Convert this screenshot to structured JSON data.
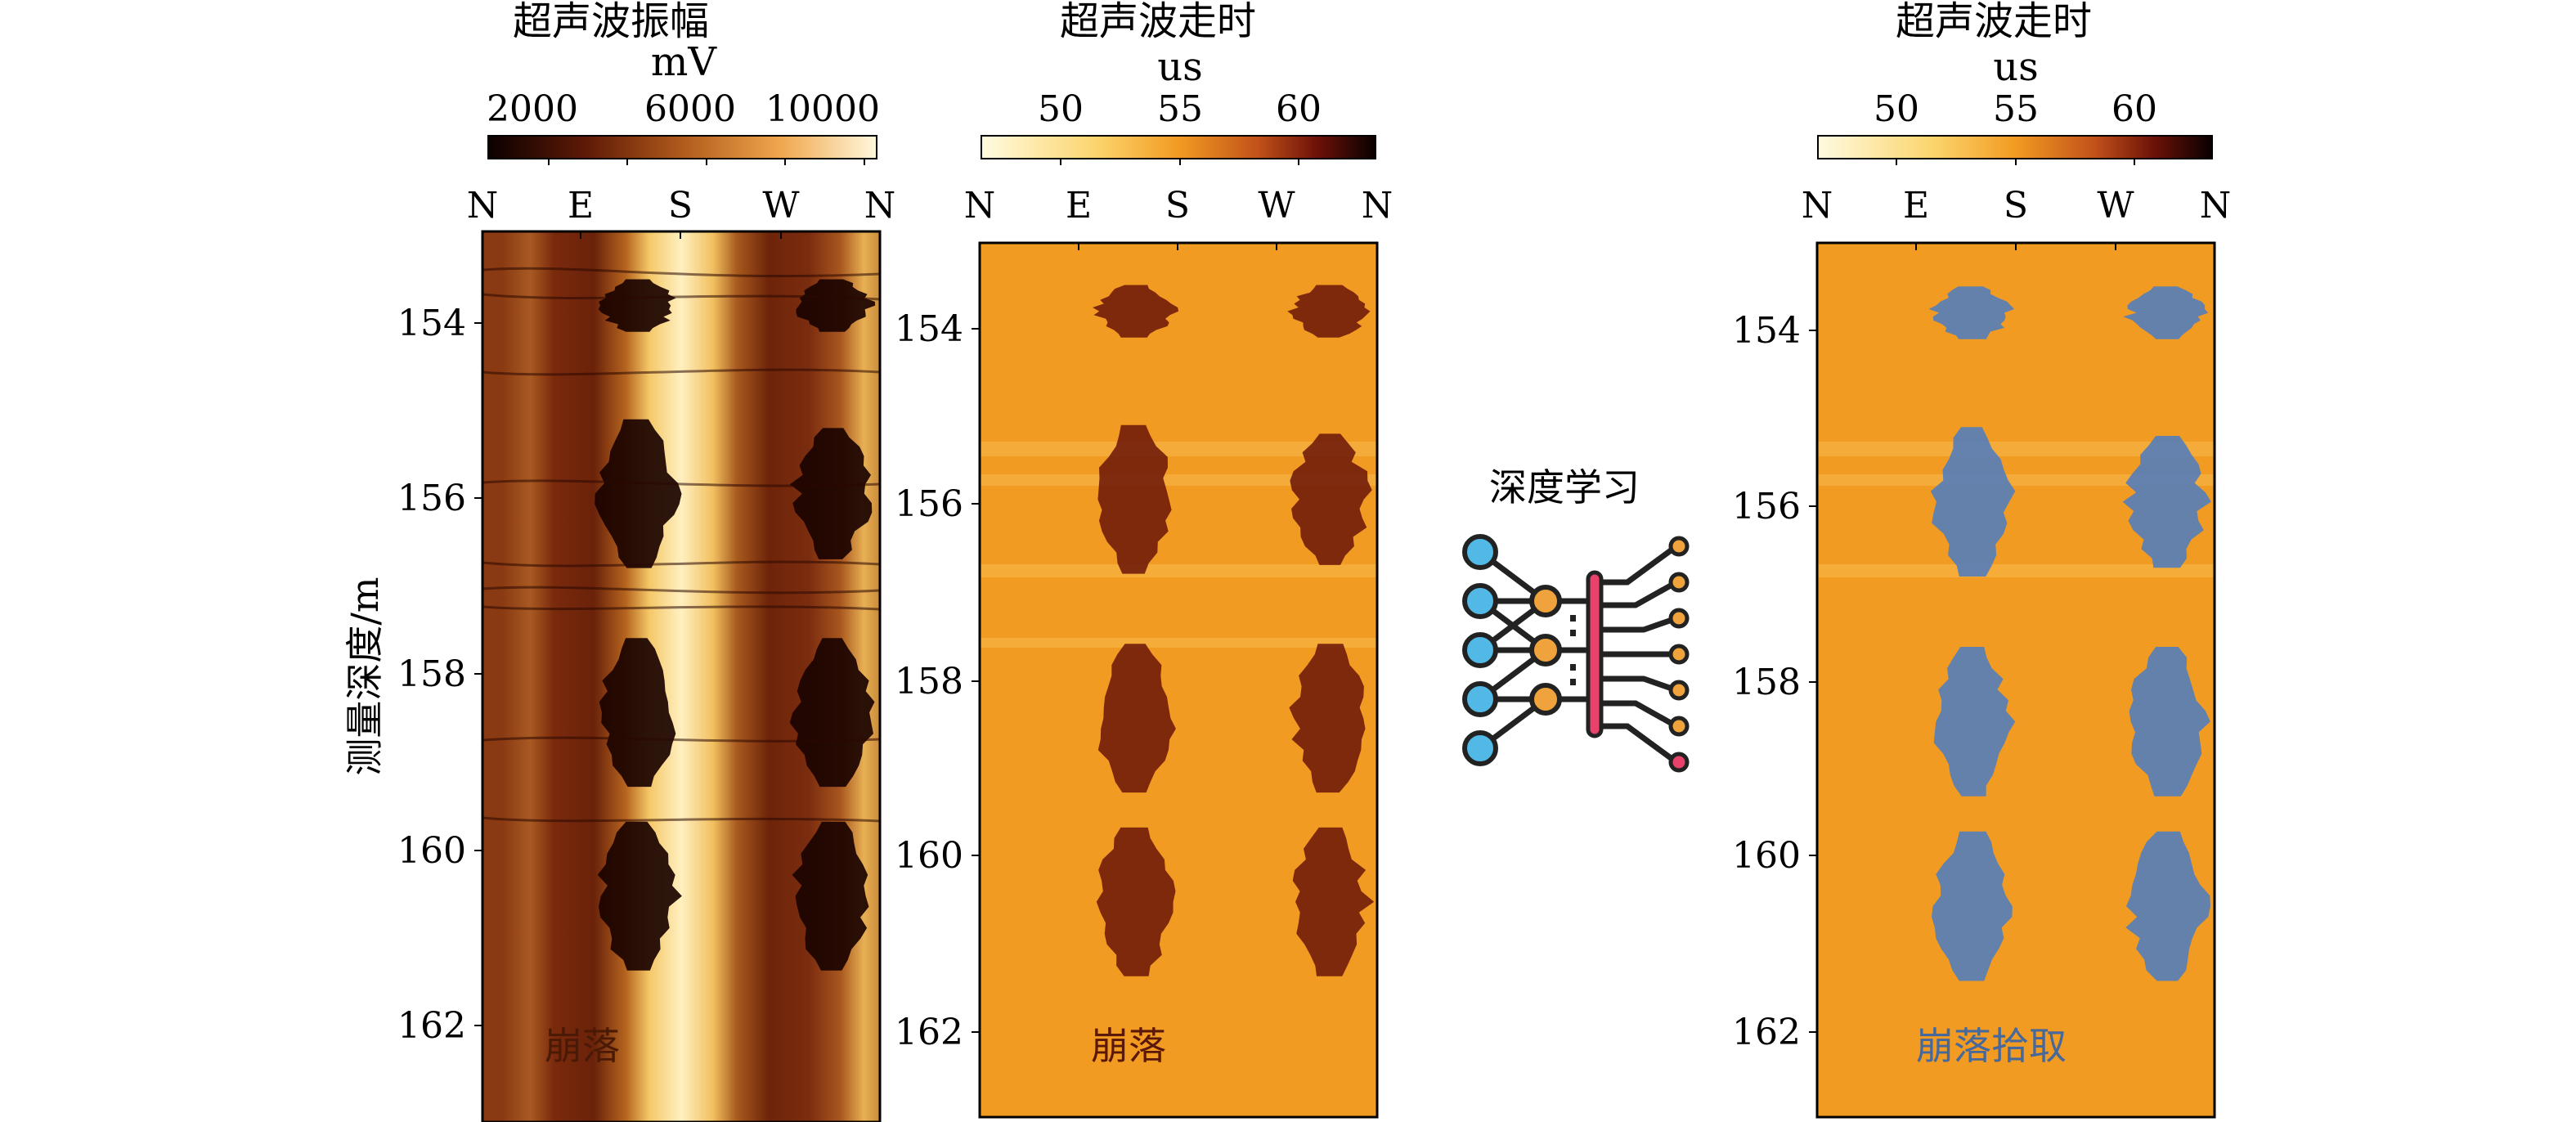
{
  "chart_data": [
    {
      "type": "heatmap",
      "title": "超声波振幅",
      "colorbar": {
        "unit": "mV",
        "ticks": [
          "2000",
          "6000",
          "10000"
        ],
        "range": [
          0,
          12000
        ],
        "colormap": "dark-brown-to-pale-yellow"
      },
      "x_ticks": [
        "N",
        "E",
        "S",
        "W",
        "N"
      ],
      "y_label": "测量深度/m",
      "y_ticks": [
        "154",
        "156",
        "158",
        "160",
        "162"
      ],
      "y_range": [
        153,
        163
      ],
      "annotation": "崩落",
      "breakout_zones": [
        {
          "depth_top": 153.5,
          "depth_bottom": 154.1,
          "azimuth": "E-S"
        },
        {
          "depth_top": 153.5,
          "depth_bottom": 154.1,
          "azimuth": "W-N"
        },
        {
          "depth_top": 155.1,
          "depth_bottom": 156.8,
          "azimuth": "E-S"
        },
        {
          "depth_top": 155.2,
          "depth_bottom": 156.7,
          "azimuth": "W-N"
        },
        {
          "depth_top": 157.6,
          "depth_bottom": 159.3,
          "azimuth": "E-S"
        },
        {
          "depth_top": 157.6,
          "depth_bottom": 159.3,
          "azimuth": "W-N"
        },
        {
          "depth_top": 159.7,
          "depth_bottom": 161.4,
          "azimuth": "E-S"
        },
        {
          "depth_top": 159.7,
          "depth_bottom": 161.4,
          "azimuth": "W-N"
        }
      ]
    },
    {
      "type": "heatmap",
      "title": "超声波走时",
      "colorbar": {
        "unit": "us",
        "ticks": [
          "50",
          "55",
          "60"
        ],
        "range": [
          46,
          64
        ],
        "colormap": "pale-yellow-to-black"
      },
      "x_ticks": [
        "N",
        "E",
        "S",
        "W",
        "N"
      ],
      "y_ticks": [
        "154",
        "156",
        "158",
        "160",
        "162"
      ],
      "y_range": [
        153,
        163
      ],
      "annotation": "崩落"
    },
    {
      "type": "heatmap",
      "title": "超声波走时",
      "colorbar": {
        "unit": "us",
        "ticks": [
          "50",
          "55",
          "60"
        ],
        "range": [
          46,
          64
        ],
        "colormap": "pale-yellow-to-black"
      },
      "x_ticks": [
        "N",
        "E",
        "S",
        "W",
        "N"
      ],
      "y_ticks": [
        "154",
        "156",
        "158",
        "160",
        "162"
      ],
      "y_range": [
        153,
        163
      ],
      "annotation": "崩落拾取",
      "overlay_color": "#5b7fb5"
    }
  ],
  "deep_learning_label": "深度学习",
  "colors": {
    "amp_dark": "#2a0c02",
    "amp_mid": "#a0501c",
    "amp_light": "#fff3c8",
    "tt_base": "#f29b22",
    "tt_dark": "#4a0a06",
    "pick_blue": "#5c7fb3",
    "node_blue": "#52b8e6",
    "node_orange": "#f0a33c",
    "bar_red": "#e8416a"
  }
}
